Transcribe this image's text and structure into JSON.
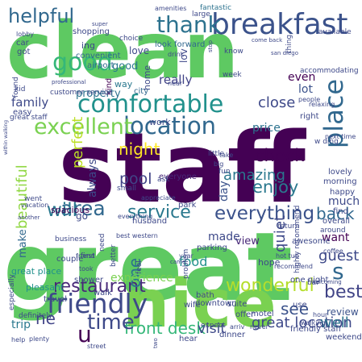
{
  "words": [
    {
      "text": "clean",
      "color": "#5ec962"
    },
    {
      "text": "staff",
      "color": "#440154"
    },
    {
      "text": "great",
      "color": "#5ec962"
    },
    {
      "text": "nice",
      "color": "#7ad151"
    },
    {
      "text": "breakfast",
      "color": "#3b528b"
    },
    {
      "text": "helpful",
      "color": "#31688e"
    },
    {
      "text": "thank",
      "color": "#2c728e"
    },
    {
      "text": "good",
      "color": "#35b779"
    },
    {
      "text": "comfortable",
      "color": "#21918c"
    },
    {
      "text": "place",
      "color": "#31688e"
    },
    {
      "text": "location",
      "color": "#31688e"
    },
    {
      "text": "excellent",
      "color": "#7ad151"
    },
    {
      "text": "friendly",
      "color": "#3e4989"
    },
    {
      "text": "area",
      "color": "#31688e"
    },
    {
      "text": "service",
      "color": "#2a788e"
    },
    {
      "text": "everything",
      "color": "#3b528b"
    },
    {
      "text": "wonderful",
      "color": "#b5de2b"
    },
    {
      "text": "restaurant",
      "color": "#482878"
    },
    {
      "text": "front desk",
      "color": "#35b779"
    },
    {
      "text": "great location",
      "color": "#3e4989"
    },
    {
      "text": "time",
      "color": "#3e4989"
    },
    {
      "text": "check",
      "color": "#440154"
    },
    {
      "text": "enjoy",
      "color": "#2a788e"
    },
    {
      "text": "amazing",
      "color": "#2a788e"
    },
    {
      "text": "pool",
      "color": "#414487"
    },
    {
      "text": "night",
      "color": "#fde725"
    },
    {
      "text": "beautiful",
      "color": "#90d743"
    },
    {
      "text": "will",
      "color": "#2a788e"
    },
    {
      "text": "back",
      "color": "#31688e"
    },
    {
      "text": "best",
      "color": "#414487"
    },
    {
      "text": "s",
      "color": "#31688e"
    },
    {
      "text": "u",
      "color": "#440154"
    },
    {
      "text": "ne",
      "color": "#414487"
    },
    {
      "text": "one",
      "color": "#2c728e"
    },
    {
      "text": "quiet",
      "color": "#3e4989"
    },
    {
      "text": "guest",
      "color": "#3e4989"
    },
    {
      "text": "well",
      "color": "#2c728e"
    },
    {
      "text": "see",
      "color": "#3b528b"
    },
    {
      "text": "view",
      "color": "#482878"
    },
    {
      "text": "food",
      "color": "#21918c"
    },
    {
      "text": "visit",
      "color": "#3e4989"
    },
    {
      "text": "trip",
      "color": "#2a788e"
    },
    {
      "text": "perfect",
      "color": "#bddf26"
    },
    {
      "text": "always",
      "color": "#3e4989"
    },
    {
      "text": "really",
      "color": "#414487"
    },
    {
      "text": "close",
      "color": "#3e4989"
    },
    {
      "text": "lot",
      "color": "#3b528b"
    },
    {
      "text": "family",
      "color": "#3e4989"
    },
    {
      "text": "price",
      "color": "#2c728e"
    },
    {
      "text": "made",
      "color": "#3e4989"
    },
    {
      "text": "experience",
      "color": "#7ad151"
    },
    {
      "text": "want",
      "color": "#440154"
    },
    {
      "text": "much",
      "color": "#3e4989"
    },
    {
      "text": "review",
      "color": "#3b528b"
    },
    {
      "text": "make",
      "color": "#31688e"
    },
    {
      "text": "love",
      "color": "#3e4989"
    },
    {
      "text": "way",
      "color": "#2a788e"
    },
    {
      "text": "property",
      "color": "#2c728e"
    },
    {
      "text": "day",
      "color": "#3b528b"
    },
    {
      "text": "even",
      "color": "#440154"
    },
    {
      "text": "good",
      "color": "#2a788e"
    },
    {
      "text": "ing",
      "color": "#3e4989"
    },
    {
      "text": "lov",
      "color": "#3e4989"
    },
    {
      "text": "go",
      "color": "#3e4989"
    },
    {
      "text": "great place",
      "color": "#21918c"
    },
    {
      "text": "airport",
      "color": "#31688e"
    },
    {
      "text": "convenient",
      "color": "#31688e"
    },
    {
      "text": "shopping",
      "color": "#3e4989"
    },
    {
      "text": "home",
      "color": "#3e4989"
    },
    {
      "text": "fantastic",
      "color": "#2c728e"
    },
    {
      "text": "look forward",
      "color": "#31688e"
    },
    {
      "text": "amenities",
      "color": "#3e4989"
    },
    {
      "text": "large",
      "color": "#3e4989"
    },
    {
      "text": "spacious",
      "color": "#440154"
    },
    {
      "text": "everyone",
      "color": "#482878"
    },
    {
      "text": "definitely",
      "color": "#3e4989"
    },
    {
      "text": "best western",
      "color": "#3e4989"
    },
    {
      "text": "hope",
      "color": "#3e4989"
    },
    {
      "text": "friendly staff",
      "color": "#3e4989"
    },
    {
      "text": "especially",
      "color": "#3e4989"
    },
    {
      "text": "pleasant",
      "color": "#21918c"
    },
    {
      "text": "business",
      "color": "#3e4989"
    },
    {
      "text": "couple",
      "color": "#3e4989"
    },
    {
      "text": "husband",
      "color": "#3e4989"
    },
    {
      "text": "parking",
      "color": "#3e4989"
    },
    {
      "text": "awesome",
      "color": "#3e4989"
    },
    {
      "text": "recommend",
      "color": "#3e4989"
    },
    {
      "text": "accommodating",
      "color": "#3e4989"
    },
    {
      "text": "kind",
      "color": "#440154"
    },
    {
      "text": "work",
      "color": "#3e4989"
    },
    {
      "text": "city",
      "color": "#31688e"
    },
    {
      "text": "bar",
      "color": "#3e4989"
    },
    {
      "text": "lovely",
      "color": "#3e4989"
    },
    {
      "text": "morning",
      "color": "#3e4989"
    },
    {
      "text": "happy",
      "color": "#3e4989"
    },
    {
      "text": "find",
      "color": "#3e4989"
    },
    {
      "text": "overall",
      "color": "#3e4989"
    },
    {
      "text": "around",
      "color": "#3e4989"
    },
    {
      "text": "weekend",
      "color": "#3e4989"
    },
    {
      "text": "wife",
      "color": "#3e4989"
    },
    {
      "text": "street",
      "color": "#3e4989"
    },
    {
      "text": "suite",
      "color": "#3e4989"
    },
    {
      "text": "hear",
      "color": "#3e4989"
    },
    {
      "text": "dinner",
      "color": "#3e4989"
    },
    {
      "text": "offer",
      "color": "#3e4989"
    },
    {
      "text": "motel",
      "color": "#3e4989"
    },
    {
      "text": "use",
      "color": "#3e4989"
    },
    {
      "text": "two",
      "color": "#3e4989"
    },
    {
      "text": "plenty",
      "color": "#3e4989"
    },
    {
      "text": "help",
      "color": "#3e4989"
    },
    {
      "text": "walk",
      "color": "#3e4989"
    },
    {
      "text": "took",
      "color": "#3e4989"
    },
    {
      "text": "travel",
      "color": "#3e4989"
    },
    {
      "text": "shower",
      "color": "#3e4989"
    },
    {
      "text": "friend",
      "color": "#3e4989"
    },
    {
      "text": "everything",
      "color": "#3e4989"
    },
    {
      "text": "year",
      "color": "#3e4989"
    },
    {
      "text": "came",
      "color": "#3e4989"
    },
    {
      "text": "bath",
      "color": "#3e4989"
    },
    {
      "text": "downtown",
      "color": "#3e4989"
    },
    {
      "text": "expect",
      "color": "#3e4989"
    },
    {
      "text": "never",
      "color": "#3e4989"
    },
    {
      "text": "hour",
      "color": "#3e4989"
    },
    {
      "text": "walking",
      "color": "#3e4989"
    },
    {
      "text": "welcoming",
      "color": "#3e4989"
    },
    {
      "text": "next time",
      "color": "#3e4989"
    },
    {
      "text": "coffee",
      "color": "#3e4989"
    },
    {
      "text": "hot tub",
      "color": "#3e4989"
    },
    {
      "text": "return",
      "color": "#3e4989"
    },
    {
      "text": "take",
      "color": "#3e4989"
    },
    {
      "text": "fun",
      "color": "#3e4989"
    },
    {
      "text": "ask",
      "color": "#3e4989"
    },
    {
      "text": "small",
      "color": "#3e4989"
    },
    {
      "text": "appreciate",
      "color": "#3e4989"
    },
    {
      "text": "park",
      "color": "#3e4989"
    },
    {
      "text": "little",
      "color": "#3e4989"
    },
    {
      "text": "big",
      "color": "#3e4989"
    },
    {
      "text": "w ding",
      "color": "#3e4989"
    },
    {
      "text": "right",
      "color": "#3e4989"
    },
    {
      "text": "people",
      "color": "#3e4989"
    },
    {
      "text": "relaxing",
      "color": "#3e4989"
    },
    {
      "text": "customer service",
      "color": "#3e4989"
    },
    {
      "text": "within walking",
      "color": "#3e4989"
    },
    {
      "text": "great staff",
      "color": "#3e4989"
    },
    {
      "text": "easy",
      "color": "#3e4989"
    },
    {
      "text": "kid",
      "color": "#3e4989"
    },
    {
      "text": "professional",
      "color": "#3e4989"
    },
    {
      "text": "found",
      "color": "#3e4989"
    },
    {
      "text": "car",
      "color": "#3e4989"
    },
    {
      "text": "got",
      "color": "#3e4989"
    },
    {
      "text": "lobby",
      "color": "#3e4989"
    },
    {
      "text": "super",
      "color": "#3e4989"
    },
    {
      "text": "choice",
      "color": "#3e4989"
    },
    {
      "text": "drink",
      "color": "#3e4989"
    },
    {
      "text": "stop",
      "color": "#3e4989"
    },
    {
      "text": "know",
      "color": "#3e4989"
    },
    {
      "text": "week",
      "color": "#3e4989"
    },
    {
      "text": "come back",
      "color": "#3e4989"
    },
    {
      "text": "san diego",
      "color": "#3e4989"
    },
    {
      "text": "available",
      "color": "#3e4989"
    },
    {
      "text": "thing",
      "color": "#3e4989"
    },
    {
      "text": "near",
      "color": "#3e4989"
    },
    {
      "text": "went",
      "color": "#3e4989"
    },
    {
      "text": "vacation",
      "color": "#3e4989"
    },
    {
      "text": "another",
      "color": "#3e4989"
    },
    {
      "text": "first",
      "color": "#3e4989"
    },
    {
      "text": "feel",
      "color": "#3e4989"
    },
    {
      "text": "better",
      "color": "#3e4989"
    },
    {
      "text": "need",
      "color": "#3e4989"
    },
    {
      "text": "problem",
      "color": "#3e4989"
    },
    {
      "text": "arriv",
      "color": "#3e4989"
    },
    {
      "text": "one night",
      "color": "#3e4989"
    },
    {
      "text": "highly recommend",
      "color": "#3e4989"
    }
  ]
}
